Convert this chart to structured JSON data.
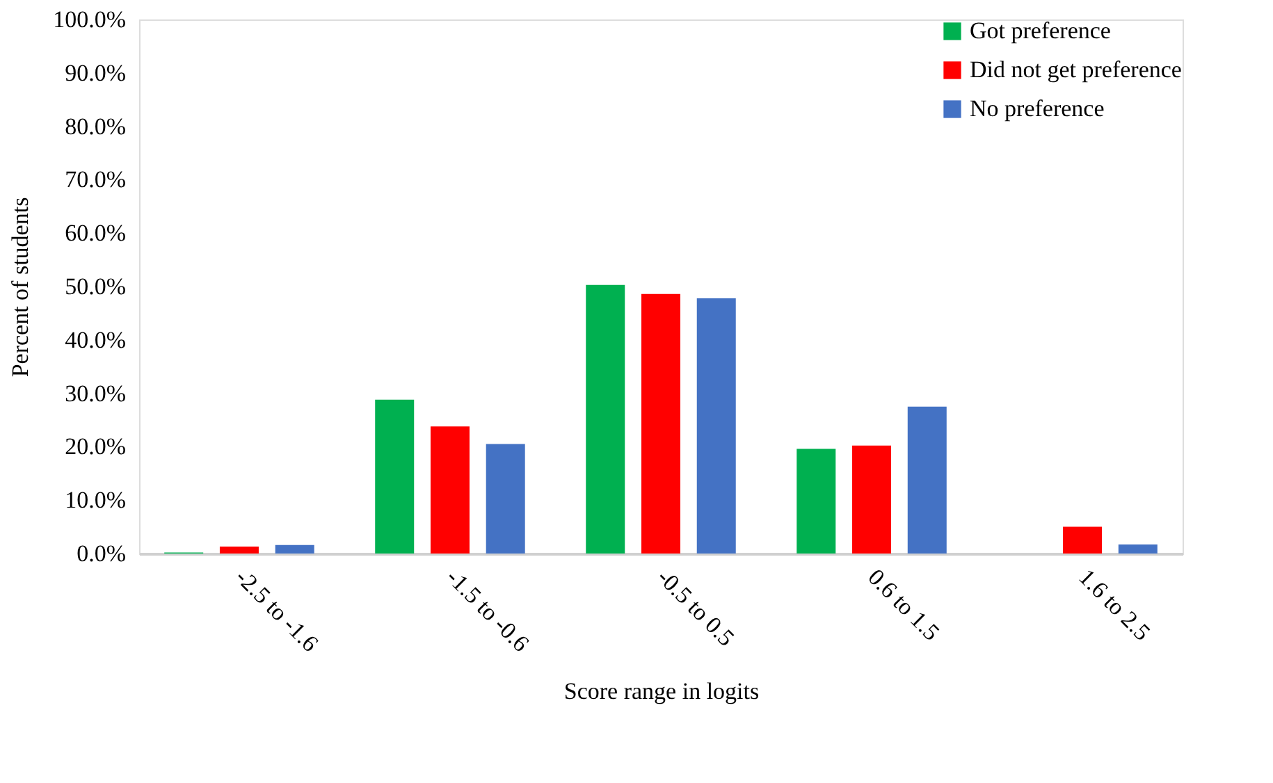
{
  "chart_data": {
    "type": "bar",
    "xlabel": "Score range in logits",
    "ylabel": "Percent of students",
    "categories": [
      "-2.5 to -1.6",
      "-1.5 to -0.6",
      "-0.5 to 0.5",
      "0.6 to 1.5",
      "1.6 to 2.5"
    ],
    "series": [
      {
        "name": "Got preference",
        "color": "#00b050",
        "values": [
          0.2,
          28.8,
          50.3,
          19.6,
          0
        ]
      },
      {
        "name": "Did not get preference",
        "color": "#ff0000",
        "values": [
          1.3,
          23.8,
          48.6,
          20.2,
          5.0
        ]
      },
      {
        "name": "No preference",
        "color": "#4472c4",
        "values": [
          1.6,
          20.5,
          47.8,
          27.5,
          1.7
        ]
      }
    ],
    "ylim": [
      0,
      100
    ],
    "yticks": [
      {
        "value": 0,
        "label": "0.0%"
      },
      {
        "value": 10,
        "label": "10.0%"
      },
      {
        "value": 20,
        "label": "20.0%"
      },
      {
        "value": 30,
        "label": "30.0%"
      },
      {
        "value": 40,
        "label": "40.0%"
      },
      {
        "value": 50,
        "label": "50.0%"
      },
      {
        "value": 60,
        "label": "60.0%"
      },
      {
        "value": 70,
        "label": "70.0%"
      },
      {
        "value": 80,
        "label": "80.0%"
      },
      {
        "value": 90,
        "label": "90.0%"
      },
      {
        "value": 100,
        "label": "100.0%"
      }
    ],
    "grid": false,
    "legend": "top right"
  }
}
